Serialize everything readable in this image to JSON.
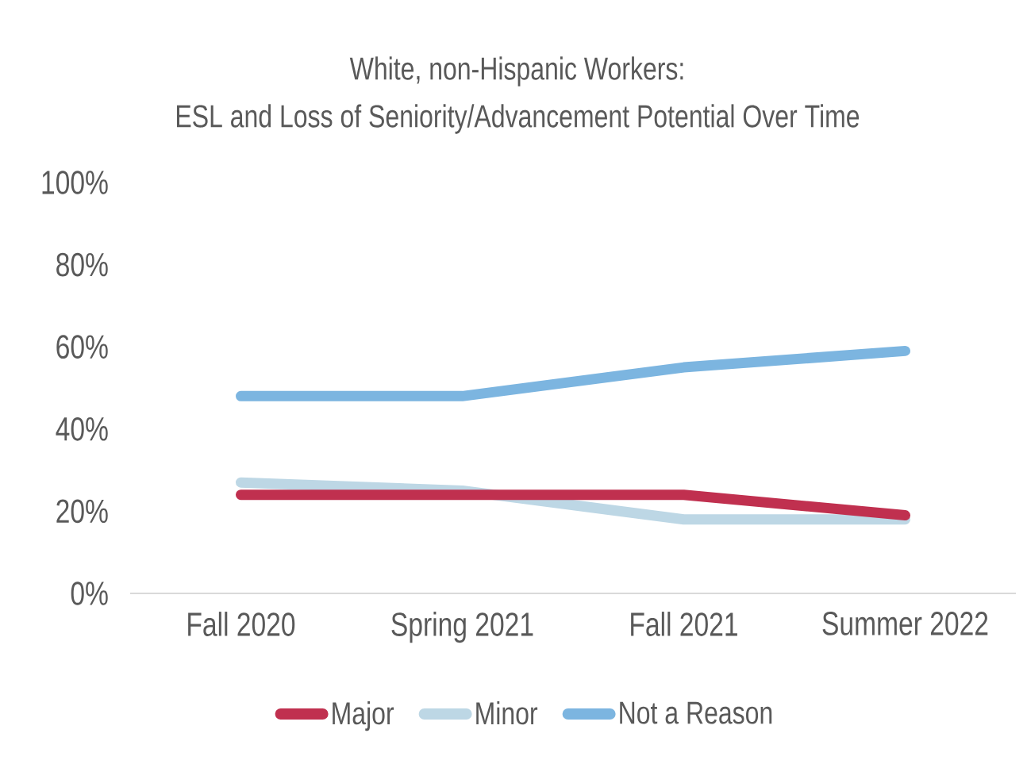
{
  "chart_data": {
    "type": "line",
    "title": "White, non-Hispanic Workers:",
    "subtitle": "ESL and Loss of Seniority/Advancement Potential Over Time",
    "categories": [
      "Fall 2020",
      "Spring 2021",
      "Fall 2021",
      "Summer 2022"
    ],
    "series": [
      {
        "name": "Major",
        "color": "#c0304f",
        "values": [
          24,
          24,
          24,
          19
        ]
      },
      {
        "name": "Minor",
        "color": "#bdd7e5",
        "values": [
          27,
          25,
          18,
          18
        ]
      },
      {
        "name": "Not a Reason",
        "color": "#7cb5e0",
        "values": [
          48,
          48,
          55,
          59
        ]
      }
    ],
    "ylim": [
      0,
      100
    ],
    "yticks": [
      {
        "value": 0,
        "label": "0%"
      },
      {
        "value": 20,
        "label": "20%"
      },
      {
        "value": 40,
        "label": "40%"
      },
      {
        "value": 60,
        "label": "60%"
      },
      {
        "value": 80,
        "label": "80%"
      },
      {
        "value": 100,
        "label": "100%"
      }
    ],
    "legend": "bottom",
    "marker": "none",
    "line_style": "solid"
  }
}
